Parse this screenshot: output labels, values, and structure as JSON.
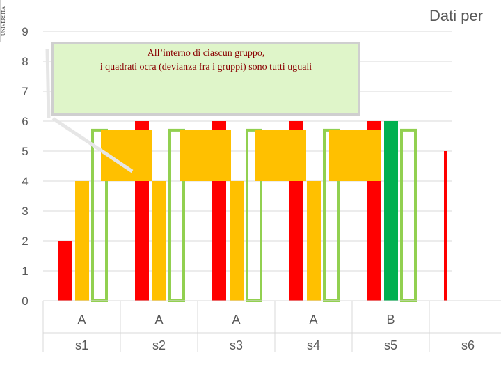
{
  "slide": {
    "logo_text": "UNIVERSITÀ",
    "callout": {
      "line1": "All’interno di ciascun gruppo,",
      "line2": "i quadrati ocra (devianza fra i  gruppi) sono tutti uguali"
    }
  },
  "chart_data": {
    "type": "bar",
    "title": "Dati per",
    "ylim": [
      0,
      9
    ],
    "yticks": [
      "0",
      "1",
      "2",
      "3",
      "4",
      "5",
      "6",
      "7",
      "8",
      "9"
    ],
    "grid": true,
    "categories": [
      {
        "group": "A",
        "label": "s1"
      },
      {
        "group": "A",
        "label": "s2"
      },
      {
        "group": "A",
        "label": "s3"
      },
      {
        "group": "A",
        "label": "s4"
      },
      {
        "group": "B",
        "label": "s5"
      },
      {
        "group": "",
        "label": "s6"
      }
    ],
    "series": [
      {
        "values": [
          2,
          6,
          6,
          6,
          6,
          5
        ],
        "color": "#ff0000"
      },
      {
        "values": [
          4,
          4,
          4,
          4,
          6,
          null
        ],
        "color": "#ffc000",
        "color_last_visible": "#00b050"
      },
      {
        "values": [
          5.7,
          5.7,
          5.7,
          5.7,
          5.7,
          null
        ],
        "color": "#92d050",
        "outline": true
      }
    ],
    "ocra_squares": [
      {
        "from": 4,
        "to": 5.7
      },
      {
        "from": 4,
        "to": 5.7
      },
      {
        "from": 4,
        "to": 5.7
      },
      {
        "from": 4,
        "to": 5.7
      }
    ],
    "colors": {
      "red": "#ff0000",
      "ocra": "#ffc000",
      "green_outline": "#92d050",
      "green_fill": "#00b050",
      "grid": "#d9d9d9",
      "callout_bg": "#dff5c9",
      "callout_text": "#8a0000"
    }
  }
}
